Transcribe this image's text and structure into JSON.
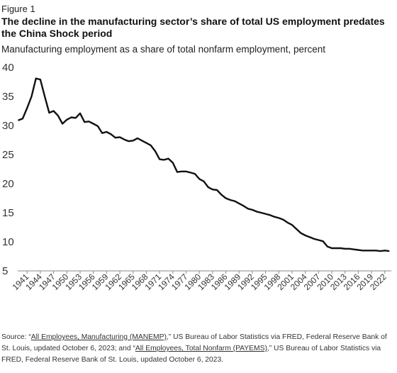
{
  "figure_label": "Figure 1",
  "chart_data": {
    "type": "line",
    "title": "The decline in the manufacturing sector’s share of total US employment predates the China Shock period",
    "subtitle": "Manufacturing employment as a share of total nonfarm employment, percent",
    "xlabel": "",
    "ylabel": "",
    "ylim": [
      5,
      40
    ],
    "yticks": [
      "40",
      "35",
      "30",
      "25",
      "20",
      "15",
      "10",
      "5"
    ],
    "xlim": [
      1940,
      2023
    ],
    "xticks": [
      "1941",
      "1944",
      "1947",
      "1950",
      "1953",
      "1956",
      "1959",
      "1962",
      "1965",
      "1968",
      "1971",
      "1974",
      "1977",
      "1980",
      "1983",
      "1986",
      "1989",
      "1992",
      "1995",
      "1998",
      "2001",
      "2004",
      "2007",
      "2010",
      "2013",
      "2016",
      "2019",
      "2022"
    ],
    "grid": "none",
    "legend": "none",
    "line_color": "#111111",
    "series": [
      {
        "x": [
          1939,
          1940,
          1941,
          1942,
          1943,
          1944,
          1945,
          1946,
          1947,
          1948,
          1949,
          1950,
          1951,
          1952,
          1953,
          1954,
          1955,
          1956,
          1957,
          1958,
          1959,
          1960,
          1961,
          1962,
          1963,
          1964,
          1965,
          1966,
          1967,
          1968,
          1969,
          1970,
          1971,
          1972,
          1973,
          1974,
          1975,
          1976,
          1977,
          1978,
          1979,
          1980,
          1981,
          1982,
          1983,
          1984,
          1985,
          1986,
          1987,
          1988,
          1989,
          1990,
          1991,
          1992,
          1993,
          1994,
          1995,
          1996,
          1997,
          1998,
          1999,
          2000,
          2001,
          2002,
          2003,
          2004,
          2005,
          2006,
          2007,
          2008,
          2009,
          2010,
          2011,
          2012,
          2013,
          2014,
          2015,
          2016,
          2017,
          2018,
          2019,
          2020,
          2021,
          2022,
          2023
        ],
        "y": [
          30.9,
          31.2,
          33.0,
          35.0,
          38.1,
          37.9,
          35.0,
          32.2,
          32.5,
          31.7,
          30.3,
          31.0,
          31.4,
          31.3,
          32.1,
          30.6,
          30.7,
          30.3,
          29.9,
          28.7,
          28.9,
          28.5,
          27.9,
          28.0,
          27.6,
          27.3,
          27.4,
          27.8,
          27.4,
          27.0,
          26.6,
          25.6,
          24.2,
          24.1,
          24.3,
          23.6,
          22.0,
          22.1,
          22.1,
          21.9,
          21.7,
          20.8,
          20.4,
          19.4,
          19.0,
          18.9,
          18.1,
          17.5,
          17.2,
          17.0,
          16.6,
          16.2,
          15.7,
          15.5,
          15.2,
          15.0,
          14.8,
          14.6,
          14.3,
          14.1,
          13.8,
          13.3,
          12.9,
          12.2,
          11.5,
          11.1,
          10.8,
          10.5,
          10.3,
          10.1,
          9.2,
          8.9,
          8.9,
          8.9,
          8.8,
          8.8,
          8.7,
          8.6,
          8.5,
          8.5,
          8.5,
          8.5,
          8.4,
          8.5,
          8.4
        ]
      }
    ]
  },
  "source": {
    "prefix": "Source: “",
    "link1": "All Employees, Manufacturing  (MANEMP)",
    "middle": ",” US Bureau of Labor Statistics via FRED, Federal Reserve Bank of St. Louis, updated October 6, 2023; and “",
    "link2": "All Employees, Total Nonfarm (PAYEMS)",
    "suffix": ",” US Bureau of Labor Statistics via FRED, Federal Reserve Bank of St. Louis, updated October 6, 2023."
  }
}
